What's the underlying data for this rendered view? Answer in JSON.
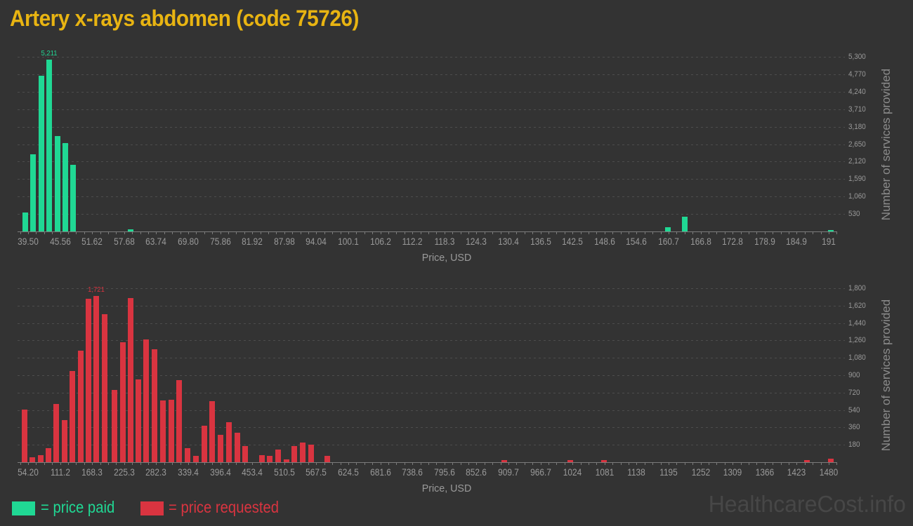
{
  "page": {
    "title": "Artery x-rays abdomen (code 75726)",
    "watermark": "HealthcareCost.info"
  },
  "colors": {
    "background": "#333333",
    "paid": "#20d894",
    "requested": "#d93440",
    "title": "#e8b412",
    "axis_text": "#9a9a9a",
    "axis_title_text": "#8c8c8c",
    "axis_line": "#7b7b7b",
    "gridline": "#4d4d4d",
    "watermark": "#474747"
  },
  "legend": {
    "paid": {
      "label": "= price paid"
    },
    "requested": {
      "label": "= price requested"
    }
  },
  "chart_data": [
    {
      "type": "bar",
      "name": "price-paid-histogram",
      "series": "paid",
      "x_axis_title": "Price, USD",
      "y_axis_title": "Number of services provided",
      "y_max": 5300,
      "y_tick_step": 530,
      "y_tick_labels": [
        "530",
        "1,060",
        "1,590",
        "2,120",
        "2,650",
        "3,180",
        "3,710",
        "4,240",
        "4,770",
        "5,300"
      ],
      "x_tick_labels": [
        "39.50",
        "45.56",
        "51.62",
        "57.68",
        "63.74",
        "69.80",
        "75.86",
        "81.92",
        "87.98",
        "94.04",
        "100.1",
        "106.2",
        "112.2",
        "118.3",
        "124.3",
        "130.4",
        "136.5",
        "142.5",
        "148.6",
        "154.6",
        "160.7",
        "166.8",
        "172.8",
        "178.9",
        "184.9",
        "191"
      ],
      "bins_per_label": 4,
      "peak_label": "5,211",
      "peak_pos": 2.65,
      "bars": [
        {
          "pos": -0.35,
          "value": 570
        },
        {
          "pos": 0.65,
          "value": 2350
        },
        {
          "pos": 1.65,
          "value": 4716
        },
        {
          "pos": 2.65,
          "value": 5211
        },
        {
          "pos": 3.65,
          "value": 2890
        },
        {
          "pos": 4.65,
          "value": 2680
        },
        {
          "pos": 5.65,
          "value": 2015
        },
        {
          "pos": 12.8,
          "value": 58
        },
        {
          "pos": 79.9,
          "value": 128
        },
        {
          "pos": 82.0,
          "value": 450
        },
        {
          "pos": 100.3,
          "value": 43
        }
      ]
    },
    {
      "type": "bar",
      "name": "price-requested-histogram",
      "series": "requested",
      "x_axis_title": "Price, USD",
      "y_axis_title": "Number of services provided",
      "y_max": 1800,
      "y_tick_step": 180,
      "y_tick_labels": [
        "180",
        "360",
        "540",
        "720",
        "900",
        "1,080",
        "1,260",
        "1,440",
        "1,620",
        "1,800"
      ],
      "x_tick_labels": [
        "54.20",
        "111.2",
        "168.3",
        "225.3",
        "282.3",
        "339.4",
        "396.4",
        "453.4",
        "510.5",
        "567.5",
        "624.5",
        "681.6",
        "738.6",
        "795.6",
        "852.6",
        "909.7",
        "966.7",
        "1024",
        "1081",
        "1138",
        "1195",
        "1252",
        "1309",
        "1366",
        "1423",
        "1480"
      ],
      "bins_per_label": 4,
      "peak_label": "1,721",
      "peak_pos": 8.53,
      "bars": [
        {
          "pos": -0.42,
          "value": 545
        },
        {
          "pos": 0.57,
          "value": 48
        },
        {
          "pos": 1.56,
          "value": 72
        },
        {
          "pos": 2.56,
          "value": 144
        },
        {
          "pos": 3.55,
          "value": 600
        },
        {
          "pos": 4.54,
          "value": 432
        },
        {
          "pos": 5.54,
          "value": 943
        },
        {
          "pos": 6.54,
          "value": 1152
        },
        {
          "pos": 7.53,
          "value": 1690
        },
        {
          "pos": 8.53,
          "value": 1721
        },
        {
          "pos": 9.52,
          "value": 1530
        },
        {
          "pos": 10.81,
          "value": 750
        },
        {
          "pos": 11.8,
          "value": 1240
        },
        {
          "pos": 12.79,
          "value": 1700
        },
        {
          "pos": 13.79,
          "value": 858
        },
        {
          "pos": 14.78,
          "value": 1271
        },
        {
          "pos": 15.77,
          "value": 1168
        },
        {
          "pos": 16.87,
          "value": 637
        },
        {
          "pos": 17.88,
          "value": 645
        },
        {
          "pos": 18.9,
          "value": 851
        },
        {
          "pos": 19.93,
          "value": 148
        },
        {
          "pos": 20.98,
          "value": 64
        },
        {
          "pos": 22.02,
          "value": 375
        },
        {
          "pos": 23.01,
          "value": 630
        },
        {
          "pos": 24.02,
          "value": 286
        },
        {
          "pos": 25.06,
          "value": 412
        },
        {
          "pos": 26.1,
          "value": 305
        },
        {
          "pos": 27.13,
          "value": 169
        },
        {
          "pos": 29.18,
          "value": 74
        },
        {
          "pos": 30.19,
          "value": 62
        },
        {
          "pos": 31.23,
          "value": 129
        },
        {
          "pos": 32.24,
          "value": 31
        },
        {
          "pos": 33.26,
          "value": 164
        },
        {
          "pos": 34.3,
          "value": 205
        },
        {
          "pos": 35.31,
          "value": 181
        },
        {
          "pos": 37.35,
          "value": 62
        },
        {
          "pos": 59.5,
          "value": 20
        },
        {
          "pos": 67.7,
          "value": 25
        },
        {
          "pos": 71.9,
          "value": 25
        },
        {
          "pos": 97.3,
          "value": 20
        },
        {
          "pos": 100.3,
          "value": 33
        }
      ]
    }
  ]
}
